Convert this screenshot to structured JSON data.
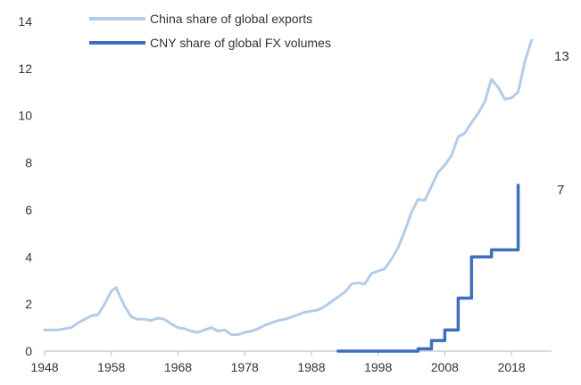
{
  "chart_data": {
    "type": "line",
    "title": "",
    "xlabel": "",
    "ylabel": "",
    "xlim": [
      1948,
      2024
    ],
    "ylim": [
      0,
      14
    ],
    "x_ticks": [
      "1948",
      "1958",
      "1968",
      "1978",
      "1988",
      "1998",
      "2008",
      "2018"
    ],
    "y_ticks": [
      "0",
      "2",
      "4",
      "6",
      "8",
      "10",
      "12",
      "14"
    ],
    "grid": false,
    "legend_position": "top-left",
    "colors": {
      "exports": "#b3cde8",
      "fx": "#3e6fbf",
      "axis": "#b5b5b5",
      "text": "#333333"
    },
    "series": [
      {
        "name": "China share of global exports",
        "end_label": "13",
        "style": "line",
        "points": [
          [
            1948,
            0.9
          ],
          [
            1950,
            0.9
          ],
          [
            1952,
            1.0
          ],
          [
            1953,
            1.2
          ],
          [
            1954,
            1.35
          ],
          [
            1955,
            1.5
          ],
          [
            1956,
            1.55
          ],
          [
            1957,
            2.0
          ],
          [
            1958,
            2.55
          ],
          [
            1958.7,
            2.7
          ],
          [
            1959,
            2.5
          ],
          [
            1960,
            1.9
          ],
          [
            1961,
            1.45
          ],
          [
            1962,
            1.35
          ],
          [
            1963,
            1.35
          ],
          [
            1964,
            1.3
          ],
          [
            1965,
            1.4
          ],
          [
            1966,
            1.35
          ],
          [
            1967,
            1.15
          ],
          [
            1968,
            1.0
          ],
          [
            1969,
            0.95
          ],
          [
            1970,
            0.85
          ],
          [
            1971,
            0.8
          ],
          [
            1972,
            0.9
          ],
          [
            1973,
            1.0
          ],
          [
            1974,
            0.85
          ],
          [
            1975,
            0.9
          ],
          [
            1976,
            0.7
          ],
          [
            1977,
            0.7
          ],
          [
            1978,
            0.8
          ],
          [
            1979,
            0.85
          ],
          [
            1980,
            0.95
          ],
          [
            1981,
            1.1
          ],
          [
            1982,
            1.2
          ],
          [
            1983,
            1.3
          ],
          [
            1984,
            1.35
          ],
          [
            1985,
            1.45
          ],
          [
            1986,
            1.55
          ],
          [
            1987,
            1.65
          ],
          [
            1988,
            1.7
          ],
          [
            1989,
            1.75
          ],
          [
            1990,
            1.9
          ],
          [
            1991,
            2.1
          ],
          [
            1992,
            2.3
          ],
          [
            1993,
            2.5
          ],
          [
            1994,
            2.85
          ],
          [
            1995,
            2.9
          ],
          [
            1996,
            2.85
          ],
          [
            1997,
            3.3
          ],
          [
            1998,
            3.4
          ],
          [
            1999,
            3.5
          ],
          [
            2000,
            3.9
          ],
          [
            2001,
            4.4
          ],
          [
            2002,
            5.1
          ],
          [
            2003,
            5.9
          ],
          [
            2004,
            6.45
          ],
          [
            2005,
            6.4
          ],
          [
            2006,
            7.0
          ],
          [
            2007,
            7.6
          ],
          [
            2008,
            7.9
          ],
          [
            2009,
            8.3
          ],
          [
            2010,
            9.1
          ],
          [
            2011,
            9.25
          ],
          [
            2012,
            9.7
          ],
          [
            2013,
            10.1
          ],
          [
            2014,
            10.6
          ],
          [
            2015,
            11.55
          ],
          [
            2016,
            11.2
          ],
          [
            2017,
            10.7
          ],
          [
            2018,
            10.75
          ],
          [
            2019,
            11.0
          ],
          [
            2020,
            12.3
          ],
          [
            2021,
            13.2
          ]
        ]
      },
      {
        "name": "CNY share of global FX volumes",
        "end_label": "7",
        "style": "step",
        "points": [
          [
            1992,
            0.0
          ],
          [
            2004,
            0.0
          ],
          [
            2004,
            0.1
          ],
          [
            2006,
            0.1
          ],
          [
            2006,
            0.45
          ],
          [
            2008,
            0.45
          ],
          [
            2008,
            0.9
          ],
          [
            2010,
            0.9
          ],
          [
            2010,
            2.25
          ],
          [
            2012,
            2.25
          ],
          [
            2012,
            4.0
          ],
          [
            2015,
            4.0
          ],
          [
            2015,
            4.3
          ],
          [
            2018,
            4.3
          ],
          [
            2019,
            4.3
          ],
          [
            2019,
            7.05
          ]
        ]
      }
    ]
  }
}
